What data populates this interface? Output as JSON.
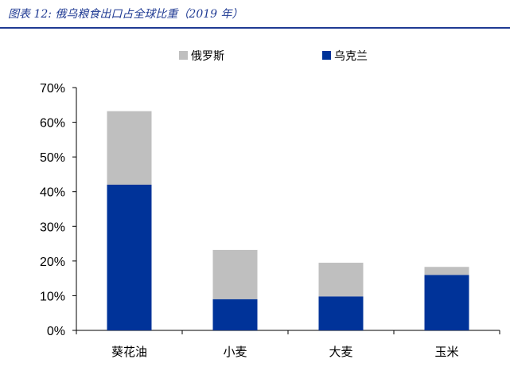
{
  "figure": {
    "title": "图表 12:  俄乌粮食出口占全球比重（2019 年）"
  },
  "chart_data": {
    "type": "bar",
    "stacked": true,
    "categories": [
      "葵花油",
      "小麦",
      "大麦",
      "玉米"
    ],
    "series": [
      {
        "name": "俄罗斯",
        "color": "#bfbfbf",
        "values": [
          21.2,
          14.2,
          9.7,
          2.3
        ]
      },
      {
        "name": "乌克兰",
        "color": "#003399",
        "values": [
          42.0,
          9.0,
          9.8,
          16.0
        ]
      }
    ],
    "legend_order": [
      "俄罗斯",
      "乌克兰"
    ],
    "legend_position": "top",
    "ylim": [
      0,
      70
    ],
    "yticks": [
      0,
      10,
      20,
      30,
      40,
      50,
      60,
      70
    ],
    "ytick_labels": [
      "0%",
      "10%",
      "20%",
      "30%",
      "40%",
      "50%",
      "60%",
      "70%"
    ],
    "grid": false,
    "xlabel": "",
    "ylabel": ""
  }
}
